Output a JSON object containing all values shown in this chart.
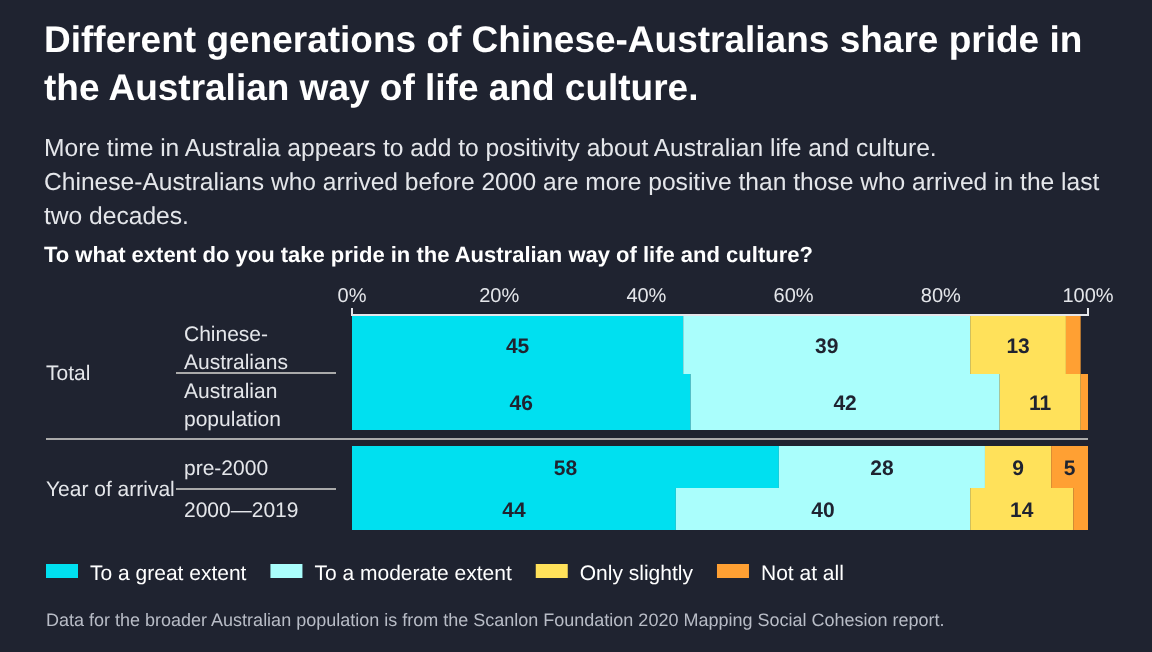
{
  "chart_data": {
    "type": "bar",
    "orientation": "horizontal",
    "stacked": true,
    "title": "Different generations of Chinese-Australians share pride in the Australian way of life and culture.",
    "subtitle": "More time in Australia appears to add to positivity about Australian life and culture. Chinese-Australians who arrived before 2000 are more positive than those who arrived in the last two decades.",
    "annotations": [
      "To what extent do you take pride in the Australian way of life and culture?",
      "Total",
      "Year of arrival",
      "Data for the broader Australian population is from the Scanlon Foundation 2020 Mapping Social Cohesion report."
    ],
    "categories": [
      "Chinese-Australians",
      "Australian population",
      "pre-2000",
      "2000—2019"
    ],
    "series": [
      {
        "name": "To a great extent",
        "color": "#00e0f0",
        "values": [
          45,
          46,
          58,
          44
        ],
        "value_labels": [
          "45",
          "46",
          "58",
          "44"
        ]
      },
      {
        "name": "To a moderate extent",
        "color": "#aafefc",
        "values": [
          39,
          42,
          28,
          40
        ],
        "value_labels": [
          "39",
          "42",
          "28",
          "40"
        ]
      },
      {
        "name": "Only slightly",
        "color": "#ffe15a",
        "values": [
          13,
          11,
          9,
          14
        ],
        "value_labels": [
          "13",
          "11",
          "9",
          "14"
        ]
      },
      {
        "name": "Not at all",
        "color": "#ffa033",
        "values": [
          2,
          1,
          5,
          2
        ],
        "value_labels": [
          null,
          null,
          "5",
          null
        ]
      }
    ],
    "xlim": [
      0,
      100
    ],
    "xticks": [
      {
        "value": 0,
        "label": "0%"
      },
      {
        "value": 20,
        "label": "20%"
      },
      {
        "value": 40,
        "label": "40%"
      },
      {
        "value": 60,
        "label": "60%"
      },
      {
        "value": 80,
        "label": "80%"
      },
      {
        "value": 100,
        "label": "100%"
      }
    ],
    "grid": false,
    "legend": "bottom"
  }
}
